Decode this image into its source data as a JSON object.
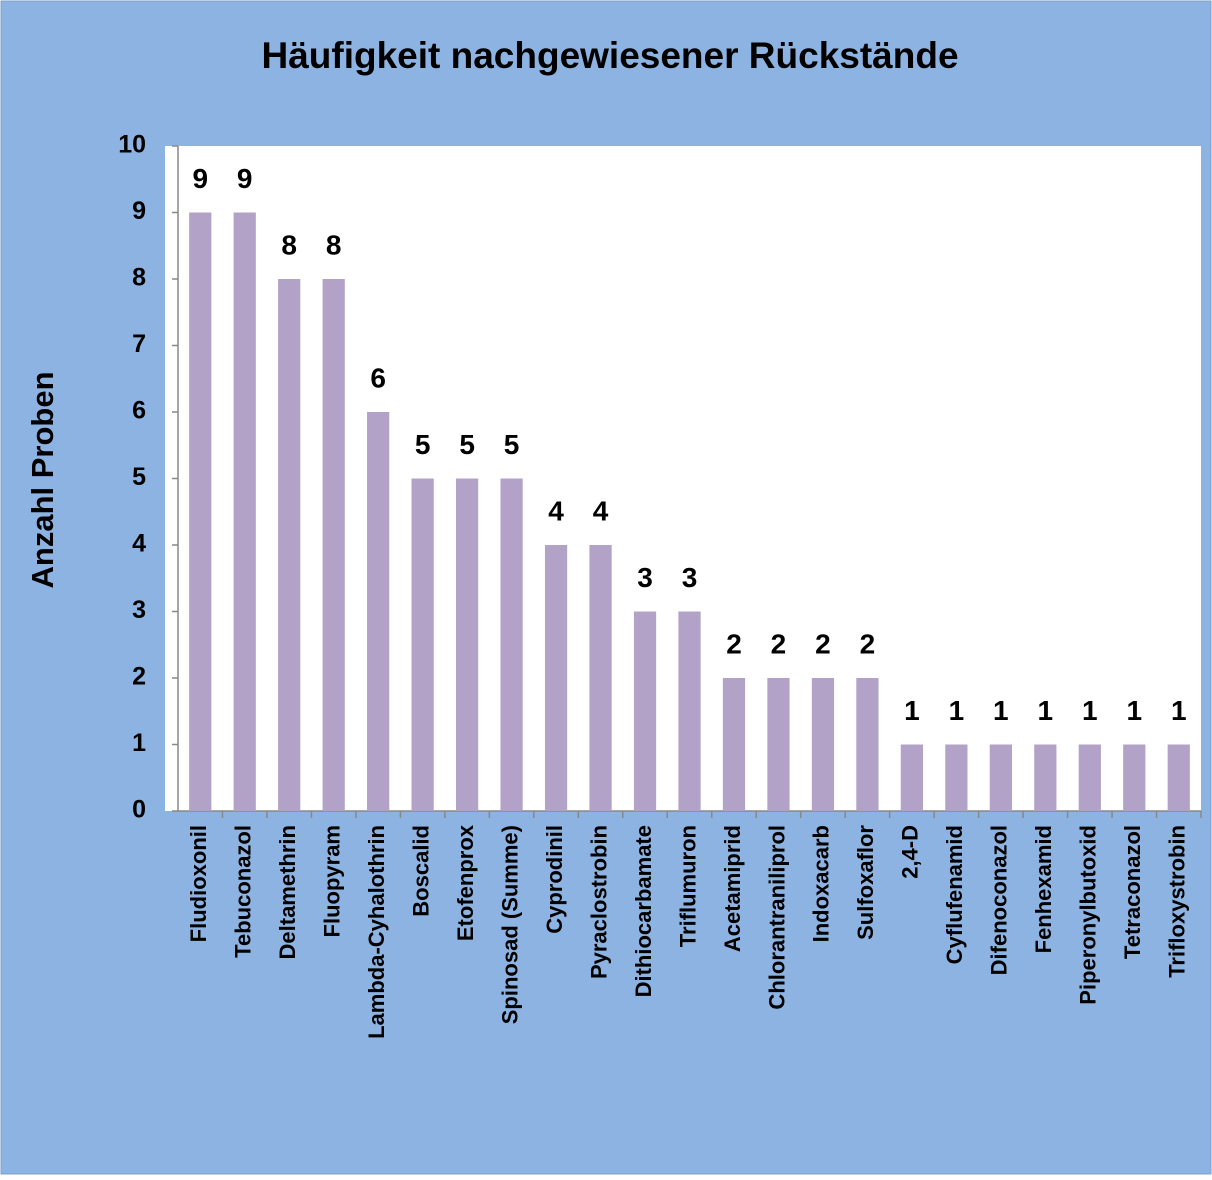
{
  "chart_data": {
    "type": "bar",
    "title": "Häufigkeit nachgewiesener Rückstände",
    "y_label": "Anzahl Proben",
    "categories": [
      "Fludioxonil",
      "Tebuconazol",
      "Deltamethrin",
      "Fluopyram",
      "Lambda-Cyhalothrin",
      "Boscalid",
      "Etofenprox",
      "Spinosad (Summe)",
      "Cyprodinil",
      "Pyraclostrobin",
      "Dithiocarbamate",
      "Triflumuron",
      "Acetamiprid",
      "Chlorantraniliprol",
      "Indoxacarb",
      "Sulfoxaflor",
      "2,4-D",
      "Cyflufenamid",
      "Difenoconazol",
      "Fenhexamid",
      "Piperonylbutoxid",
      "Tetraconazol",
      "Trifloxystrobin"
    ],
    "values": [
      9,
      9,
      8,
      8,
      6,
      5,
      5,
      5,
      4,
      4,
      3,
      3,
      2,
      2,
      2,
      2,
      1,
      1,
      1,
      1,
      1,
      1,
      1
    ],
    "color": "#b3a2c7",
    "ylim": [
      0,
      10
    ],
    "yticks": [
      0,
      1,
      2,
      3,
      4,
      5,
      6,
      7,
      8,
      9,
      10
    ],
    "grid": false
  }
}
